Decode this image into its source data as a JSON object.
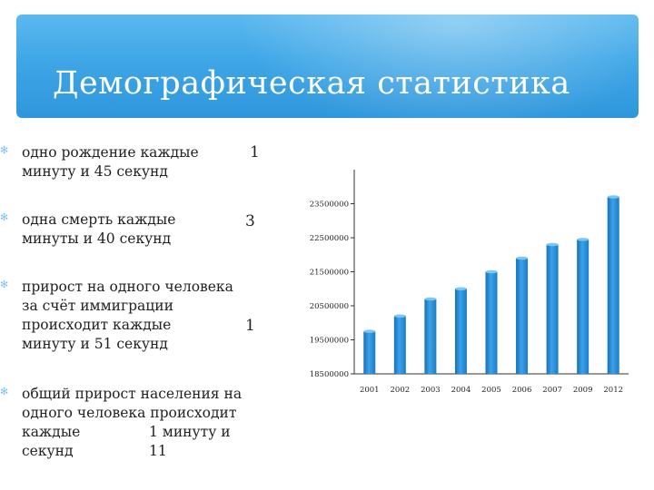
{
  "title": "Демографическая статистика",
  "bullets": [
    {
      "lines": [
        "одно рождение каждые",
        "минуту и 45 секунд"
      ],
      "number": "1"
    },
    {
      "lines": [
        "одна смерть каждые",
        "минуты и 40 секунд"
      ],
      "number": "3"
    },
    {
      "lines": [
        "прирост на одного человека",
        "за счёт иммиграции",
        "происходит каждые",
        "минуту и 51 секунд"
      ],
      "number": "1"
    },
    {
      "lines": [
        "общий прирост населения на",
        "одного человека происходит",
        "каждые",
        "секунд"
      ],
      "inline": "1 минуту и 11"
    }
  ],
  "colors": {
    "header": "#3ea6e6",
    "bar": "#2a8fd6",
    "bullet": "#7cc2ec"
  },
  "icons": {
    "bullet": "asterisk-icon"
  },
  "chart_data": {
    "type": "bar",
    "categories": [
      "2001",
      "2002",
      "2003",
      "2004",
      "2005",
      "2006",
      "2007",
      "2009",
      "2012"
    ],
    "values": [
      19750000,
      20200000,
      20700000,
      21000000,
      21500000,
      21900000,
      22300000,
      22450000,
      23700000
    ],
    "tick_labels": [
      "23500000",
      "22500000",
      "21500000",
      "20500000",
      "19500000",
      "18500000"
    ],
    "ylim": [
      18500000,
      24500000
    ],
    "grid": false,
    "title": "",
    "xlabel": "",
    "ylabel": ""
  }
}
